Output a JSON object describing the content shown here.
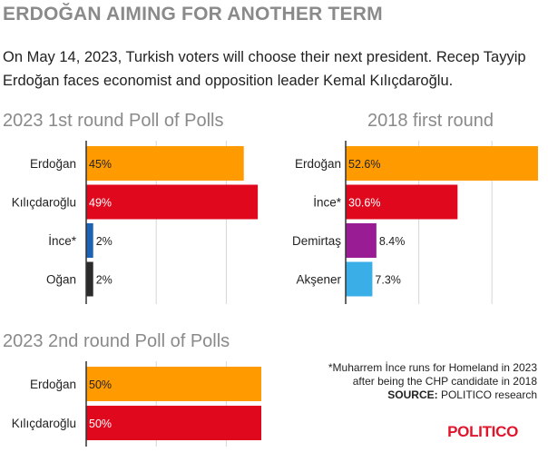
{
  "headline": "ERDOĞAN AIMING FOR ANOTHER TERM",
  "dek": "On May 14, 2023, Turkish voters will choose their next president. Recep Tayyip Erdoğan faces economist and opposition leader Kemal Kılıçdaroğlu.",
  "colors": {
    "erdogan": "#ff9a00",
    "kilicdaroglu": "#e0081c",
    "ince": "#1d63b4",
    "ogan": "#2b2b2b",
    "demirtas": "#9a1c95",
    "aksener": "#3aaee6",
    "axis": "#333333",
    "grid": "#d6d6d6",
    "title_gray": "#8a8a8a",
    "logo": "#e0152c"
  },
  "chart_data": [
    {
      "type": "bar",
      "orientation": "horizontal",
      "title": "2023 1st round Poll of Polls",
      "categories": [
        "Erdoğan",
        "Kılıçdaroğlu",
        "İnce*",
        "Oğan"
      ],
      "values": [
        45,
        49,
        2,
        2
      ],
      "value_labels": [
        "45%",
        "49%",
        "2%",
        "2%"
      ],
      "color_keys": [
        "erdogan",
        "kilicdaroglu",
        "ince",
        "ogan"
      ],
      "xlim": [
        0,
        60
      ],
      "grid": true
    },
    {
      "type": "bar",
      "orientation": "horizontal",
      "title": "2018 first round",
      "categories": [
        "Erdoğan",
        "İnce*",
        "Demirtaş",
        "Akşener"
      ],
      "values": [
        52.6,
        30.6,
        8.4,
        7.3
      ],
      "value_labels": [
        "52.6%",
        "30.6%",
        "8.4%",
        "7.3%"
      ],
      "color_keys": [
        "erdogan",
        "kilicdaroglu",
        "demirtas",
        "aksener"
      ],
      "xlim": [
        0,
        60
      ],
      "grid": true
    },
    {
      "type": "bar",
      "orientation": "horizontal",
      "title": "2023 2nd round Poll of Polls",
      "categories": [
        "Erdoğan",
        "Kılıçdaroğlu"
      ],
      "values": [
        50,
        50
      ],
      "value_labels": [
        "50%",
        "50%"
      ],
      "color_keys": [
        "erdogan",
        "kilicdaroglu"
      ],
      "xlim": [
        0,
        60
      ],
      "grid": true
    }
  ],
  "note": {
    "line1": "*Muharrem İnce runs for Homeland in 2023",
    "line2": "after being the CHP candidate in 2018",
    "source_label": "SOURCE:",
    "source_text": "POLITICO research"
  },
  "logo_text": "POLITICO"
}
